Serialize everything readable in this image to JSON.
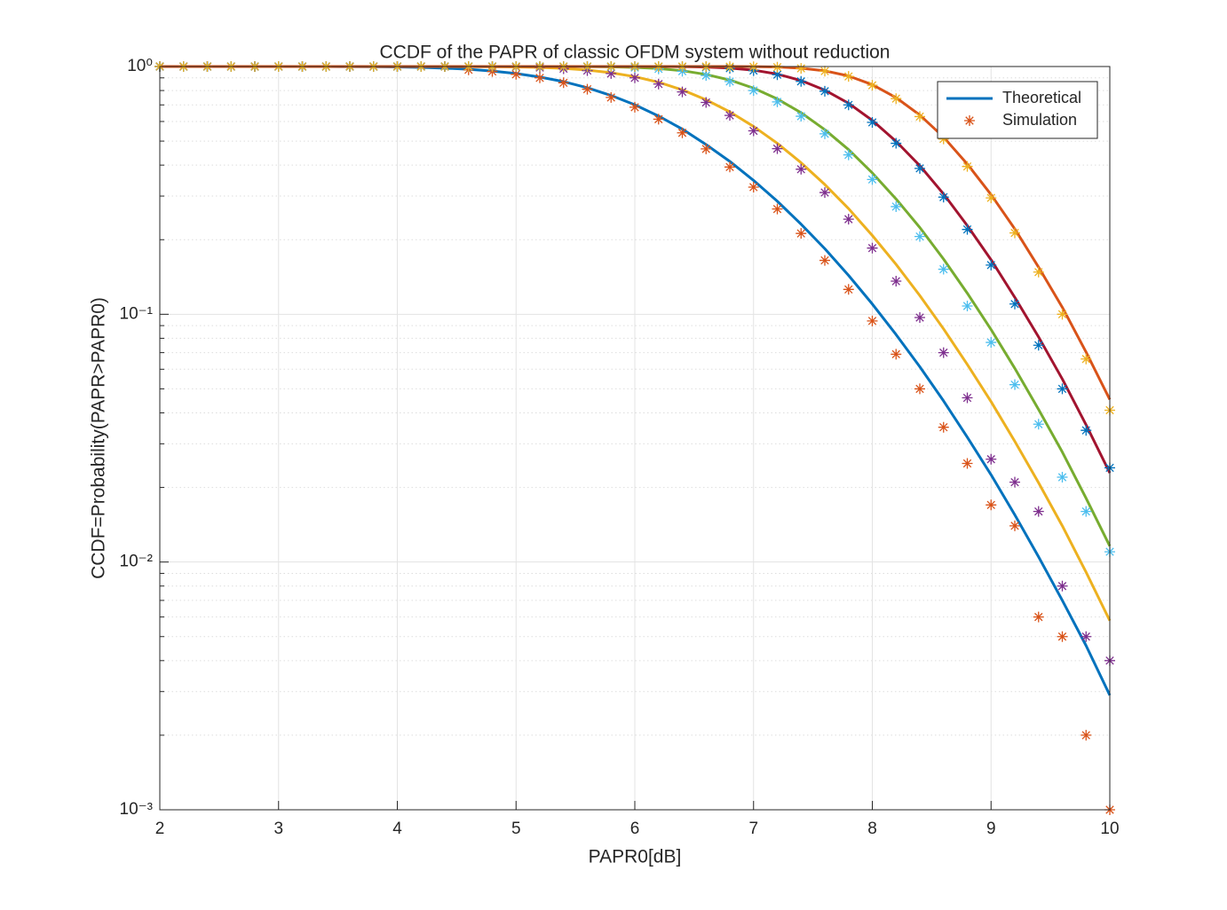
{
  "chart_data": {
    "type": "line",
    "title": "CCDF of the PAPR of classic OFDM system without reduction",
    "x_label": "PAPR0[dB]",
    "y_label": "CCDF=Probability(PAPR>PAPR0)",
    "y_scale": "log",
    "grid": true,
    "minor_grid": true,
    "legend_position": "upper right",
    "xlim": [
      2,
      10
    ],
    "xticks": [
      2,
      3,
      4,
      5,
      6,
      7,
      8,
      9,
      10
    ],
    "ylim": [
      0.001,
      1
    ],
    "yticks": [
      {
        "value": 0.001,
        "label": "10⁻³"
      },
      {
        "value": 0.01,
        "label": "10⁻²"
      },
      {
        "value": 0.1,
        "label": "10⁻¹"
      },
      {
        "value": 1,
        "label": "10⁰"
      }
    ],
    "yminorticks": [
      0.002,
      0.003,
      0.004,
      0.005,
      0.006,
      0.007,
      0.008,
      0.009,
      0.02,
      0.03,
      0.04,
      0.05,
      0.06,
      0.07,
      0.08,
      0.09,
      0.2,
      0.3,
      0.4,
      0.5,
      0.6,
      0.7,
      0.8,
      0.9
    ],
    "x": [
      2,
      2.2,
      2.4,
      2.6,
      2.8,
      3,
      3.2,
      3.4,
      3.6,
      3.8,
      4,
      4.2,
      4.4,
      4.6,
      4.8,
      5,
      5.2,
      5.4,
      5.6,
      5.8,
      6,
      6.2,
      6.4,
      6.6,
      6.8,
      7,
      7.2,
      7.4,
      7.6,
      7.8,
      8,
      8.2,
      8.4,
      8.6,
      8.8,
      9,
      9.2,
      9.4,
      9.6,
      9.8,
      10
    ],
    "series": [
      {
        "name": "Theoretical",
        "mode": "line",
        "color": "#0072bd",
        "values": [
          1,
          1,
          1,
          1,
          1,
          1,
          0.9998,
          0.9995,
          0.9989,
          0.9977,
          0.9955,
          0.9916,
          0.985,
          0.975,
          0.959,
          0.937,
          0.907,
          0.869,
          0.821,
          0.764,
          0.701,
          0.631,
          0.559,
          0.484,
          0.414,
          0.347,
          0.286,
          0.231,
          0.184,
          0.1435,
          0.11,
          0.0828,
          0.0614,
          0.0447,
          0.0319,
          0.0225,
          0.0155,
          0.0105,
          0.007,
          0.0046,
          0.0029
        ]
      },
      {
        "name": "Simulation",
        "mode": "markers",
        "color": "#d95319",
        "values": [
          1,
          1,
          1,
          1,
          1,
          1,
          1,
          1,
          1,
          1,
          1,
          1,
          1,
          0.97,
          0.955,
          0.93,
          0.9,
          0.86,
          0.81,
          0.75,
          0.685,
          0.613,
          0.54,
          0.465,
          0.393,
          0.326,
          0.266,
          0.212,
          0.165,
          0.126,
          0.094,
          0.069,
          0.05,
          0.035,
          0.025,
          0.017,
          0.014,
          0.006,
          0.005,
          0.002,
          0.001
        ]
      },
      {
        "mode": "line",
        "color": "#edb120",
        "values": [
          1,
          1,
          1,
          1,
          1,
          1,
          1,
          1,
          1,
          1,
          1,
          0.9999,
          0.9998,
          0.9994,
          0.9983,
          0.996,
          0.9914,
          0.9828,
          0.968,
          0.944,
          0.91,
          0.864,
          0.805,
          0.734,
          0.656,
          0.573,
          0.49,
          0.409,
          0.334,
          0.267,
          0.208,
          0.159,
          0.119,
          0.0873,
          0.0627,
          0.0444,
          0.0307,
          0.0209,
          0.014,
          0.0091,
          0.0058
        ]
      },
      {
        "mode": "markers",
        "color": "#7e2f8e",
        "values": [
          1,
          1,
          1,
          1,
          1,
          1,
          1,
          1,
          1,
          1,
          1,
          1,
          1,
          1,
          1,
          0.995,
          0.99,
          0.98,
          0.963,
          0.937,
          0.9,
          0.85,
          0.79,
          0.716,
          0.635,
          0.55,
          0.466,
          0.385,
          0.31,
          0.242,
          0.185,
          0.136,
          0.097,
          0.07,
          0.046,
          0.026,
          0.021,
          0.016,
          0.008,
          0.005,
          0.004
        ]
      },
      {
        "mode": "line",
        "color": "#77ac30",
        "values": [
          1,
          1,
          1,
          1,
          1,
          1,
          1,
          1,
          1,
          1,
          1,
          1,
          1,
          1,
          1,
          1,
          0.9999,
          0.9997,
          0.999,
          0.9969,
          0.992,
          0.9815,
          0.962,
          0.929,
          0.882,
          0.818,
          0.74,
          0.651,
          0.556,
          0.462,
          0.372,
          0.292,
          0.224,
          0.167,
          0.1216,
          0.0868,
          0.0605,
          0.0413,
          0.0278,
          0.0181,
          0.0116
        ]
      },
      {
        "mode": "markers",
        "color": "#4dbeee",
        "values": [
          1,
          1,
          1,
          1,
          1,
          1,
          1,
          1,
          1,
          1,
          1,
          1,
          1,
          1,
          1,
          1,
          1,
          0.999,
          0.998,
          0.995,
          0.99,
          0.978,
          0.957,
          0.92,
          0.87,
          0.8,
          0.72,
          0.63,
          0.535,
          0.44,
          0.35,
          0.272,
          0.206,
          0.152,
          0.108,
          0.077,
          0.052,
          0.036,
          0.022,
          0.016,
          0.011
        ]
      },
      {
        "mode": "line",
        "color": "#a2142f",
        "values": [
          1,
          1,
          1,
          1,
          1,
          1,
          1,
          1,
          1,
          1,
          1,
          1,
          1,
          1,
          1,
          1,
          1,
          1,
          1,
          1,
          0.9999,
          0.9997,
          0.9986,
          0.995,
          0.986,
          0.967,
          0.932,
          0.878,
          0.803,
          0.711,
          0.606,
          0.499,
          0.398,
          0.306,
          0.228,
          0.166,
          0.117,
          0.081,
          0.0548,
          0.0358,
          0.0229
        ]
      },
      {
        "mode": "markers",
        "color": "#0072bd",
        "values": [
          1,
          1,
          1,
          1,
          1,
          1,
          1,
          1,
          1,
          1,
          1,
          1,
          1,
          1,
          1,
          1,
          1,
          1,
          1,
          1,
          1,
          0.999,
          0.998,
          0.994,
          0.984,
          0.963,
          0.927,
          0.871,
          0.795,
          0.7,
          0.595,
          0.49,
          0.388,
          0.297,
          0.22,
          0.158,
          0.11,
          0.075,
          0.05,
          0.034,
          0.024
        ]
      },
      {
        "mode": "line",
        "color": "#d95319",
        "values": [
          1,
          1,
          1,
          1,
          1,
          1,
          1,
          1,
          1,
          1,
          1,
          1,
          1,
          1,
          1,
          1,
          1,
          1,
          1,
          1,
          1,
          1,
          1,
          1,
          0.9998,
          0.9989,
          0.9954,
          0.985,
          0.961,
          0.916,
          0.845,
          0.749,
          0.637,
          0.519,
          0.404,
          0.304,
          0.221,
          0.155,
          0.1067,
          0.0704,
          0.0453
        ]
      },
      {
        "mode": "markers",
        "color": "#edb120",
        "values": [
          1,
          1,
          1,
          1,
          1,
          1,
          1,
          1,
          1,
          1,
          1,
          1,
          1,
          1,
          1,
          1,
          1,
          1,
          1,
          1,
          1,
          1,
          1,
          1,
          0.999,
          0.998,
          0.994,
          0.983,
          0.958,
          0.912,
          0.84,
          0.742,
          0.628,
          0.51,
          0.395,
          0.295,
          0.213,
          0.148,
          0.1,
          0.066,
          0.041
        ]
      }
    ]
  }
}
